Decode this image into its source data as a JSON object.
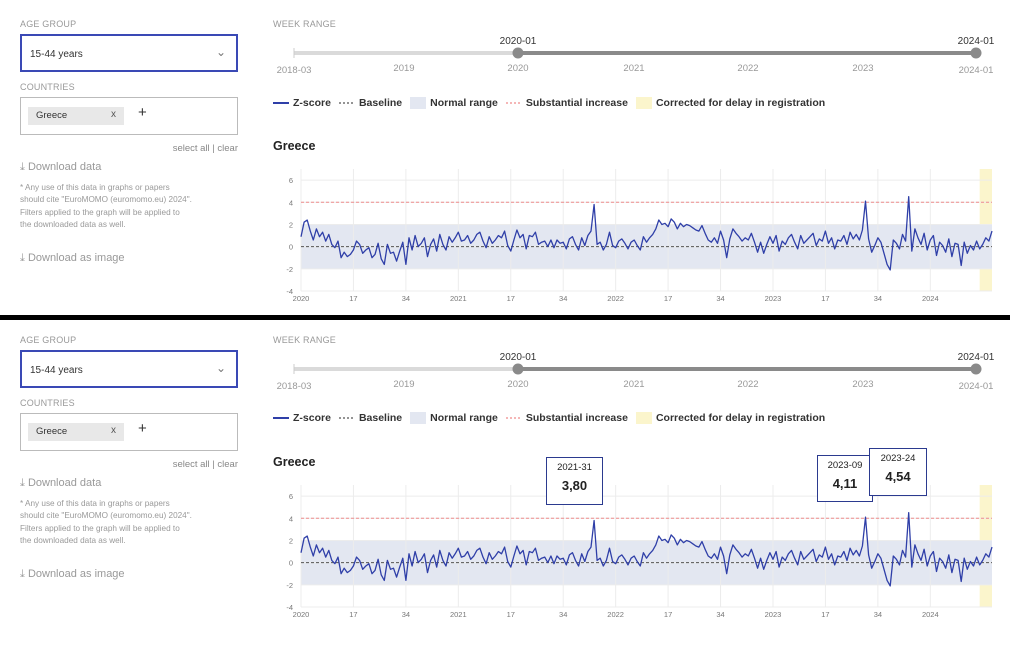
{
  "labels": {
    "age_group": "AGE GROUP",
    "week_range": "WEEK RANGE",
    "countries": "COUNTRIES"
  },
  "age_select": {
    "value": "15-44 years",
    "chevron": "chevron-down-icon"
  },
  "countries": {
    "chips": [
      {
        "label": "Greece",
        "remove": "x"
      }
    ],
    "add": "+"
  },
  "select_links": {
    "text": "select all | clear"
  },
  "download": {
    "data_label": "Download data",
    "image_label": "Download as image",
    "icon": "download-icon",
    "note_lines": [
      "* Any use of this data in graphs or papers",
      "should cite \"EuroMOMO (euromomo.eu) 2024\".",
      "Filters applied to the graph will be applied to",
      "the downloaded data as well."
    ]
  },
  "week_range": {
    "start": "2020-01",
    "end": "2024-01",
    "min_label": "2018-03",
    "max_label": "2024-01",
    "year_ticks": [
      "2019",
      "2020",
      "2021",
      "2022",
      "2023"
    ]
  },
  "legend": {
    "zscore": "Z-score",
    "baseline": "Baseline",
    "normal_range": "Normal range",
    "substantial": "Substantial increase",
    "corrected": "Corrected for delay in registration"
  },
  "chart_title": "Greece",
  "chart_data": {
    "type": "line",
    "x_tick_labels": [
      "2020",
      "17",
      "34",
      "2021",
      "17",
      "34",
      "2022",
      "17",
      "34",
      "2023",
      "17",
      "34",
      "2024"
    ],
    "y_ticks": [
      -4,
      -2,
      0,
      2,
      4,
      6
    ],
    "ylim": [
      -4,
      7
    ],
    "normal_range": [
      -2,
      2
    ],
    "substantial_threshold": 4,
    "baseline": 0,
    "series": [
      {
        "values": [
          0.9,
          2.2,
          2.4,
          1.4,
          0.6,
          1.6,
          0.9,
          1.3,
          0.5,
          1.1,
          0.2,
          -0.1,
          0.5,
          -1.0,
          -0.5,
          -0.9,
          -0.7,
          -0.3,
          0.5,
          0.2,
          -0.6,
          -0.3,
          -0.1,
          -1.0,
          -0.7,
          0.3,
          -1.1,
          -1.6,
          0.2,
          -0.6,
          -0.5,
          -1.3,
          -0.4,
          0.4,
          -1.6,
          0.8,
          -0.3,
          1.0,
          0.0,
          0.3,
          0.8,
          -0.9,
          0.2,
          0.7,
          -0.4,
          1.1,
          0.2,
          -0.3,
          0.9,
          0.4,
          0.8,
          1.3,
          0.5,
          0.6,
          1.0,
          0.3,
          0.6,
          1.1,
          1.3,
          0.5,
          -0.1,
          0.9,
          0.3,
          0.6,
          1.0,
          0.8,
          1.4,
          0.1,
          -0.4,
          0.6,
          1.5,
          0.8,
          1.1,
          -0.2,
          1.0,
          0.9,
          1.3,
          0.2,
          0.4,
          0.5,
          0.0,
          0.6,
          -0.1,
          0.6,
          0.3,
          0.4,
          -0.2,
          0.7,
          0.9,
          0.2,
          -0.3,
          0.8,
          0.1,
          1.0,
          1.4,
          3.8,
          0.2,
          0.4,
          -0.3,
          0.2,
          1.3,
          0.1,
          -0.1,
          0.5,
          0.7,
          0.3,
          -0.2,
          0.4,
          0.6,
          0.1,
          -0.3,
          0.9,
          0.4,
          0.8,
          1.1,
          1.6,
          2.4,
          2.0,
          2.1,
          1.8,
          2.5,
          2.2,
          1.6,
          2.1,
          1.8,
          2.0,
          1.9,
          1.7,
          1.5,
          1.4,
          1.9,
          1.2,
          0.6,
          0.4,
          0.8,
          0.3,
          1.4,
          0.6,
          -1.0,
          0.7,
          1.6,
          1.2,
          0.9,
          0.5,
          0.8,
          0.6,
          1.2,
          0.4,
          -0.5,
          0.4,
          -0.6,
          0.2,
          0.9,
          0.3,
          1.0,
          -0.4,
          0.5,
          0.2,
          0.8,
          1.1,
          0.4,
          -0.2,
          1.0,
          0.3,
          0.6,
          0.9,
          1.2,
          0.1,
          0.7,
          0.5,
          1.4,
          0.3,
          0.8,
          -0.2,
          0.6,
          0.5,
          1.0,
          0.2,
          1.3,
          0.7,
          1.1,
          0.6,
          1.5,
          4.1,
          0.7,
          -0.5,
          0.1,
          0.8,
          0.4,
          -0.6,
          -1.6,
          -2.1,
          0.6,
          0.3,
          -0.2,
          1.1,
          0.5,
          4.5,
          -0.4,
          1.6,
          0.8,
          0.2,
          1.2,
          -0.3,
          0.6,
          1.0,
          -0.8,
          0.4,
          0.1,
          -0.5,
          0.7,
          -0.9,
          0.3,
          0.2,
          -1.7,
          0.4,
          -0.6,
          0.1,
          -0.3,
          0.5,
          -0.2,
          0.2,
          0.8,
          0.5,
          1.4
        ]
      }
    ],
    "corrected_weeks": 4
  },
  "annotations": [
    {
      "week": "2021-31",
      "value": "3,80"
    },
    {
      "week": "2023-09",
      "value": "4,11"
    },
    {
      "week": "2023-24",
      "value": "4,54"
    }
  ]
}
